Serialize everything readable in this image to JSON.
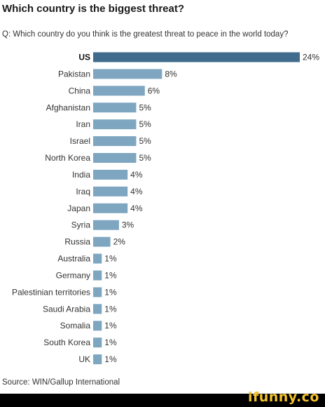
{
  "title": "Which country is the biggest threat?",
  "subtitle": "Q: Which country do you think is the greatest threat to peace in the world today?",
  "source": "Source: WIN/Gallup International",
  "watermark": "ifunny.co",
  "colors": {
    "highlight_bar": "#416b8c",
    "bar": "#7fa6c0",
    "watermark": "#f6c32b"
  },
  "chart_data": {
    "type": "bar",
    "orientation": "horizontal",
    "title": "Which country is the biggest threat?",
    "highlighted_category": "US",
    "value_suffix": "%",
    "categories": [
      "US",
      "Pakistan",
      "China",
      "Afghanistan",
      "Iran",
      "Israel",
      "North Korea",
      "India",
      "Iraq",
      "Japan",
      "Syria",
      "Russia",
      "Australia",
      "Germany",
      "Palestinian territories",
      "Saudi Arabia",
      "Somalia",
      "South Korea",
      "UK"
    ],
    "values": [
      24,
      8,
      6,
      5,
      5,
      5,
      5,
      4,
      4,
      4,
      3,
      2,
      1,
      1,
      1,
      1,
      1,
      1,
      1
    ],
    "xlim": [
      0,
      24
    ],
    "grid": false,
    "legend": "none"
  }
}
